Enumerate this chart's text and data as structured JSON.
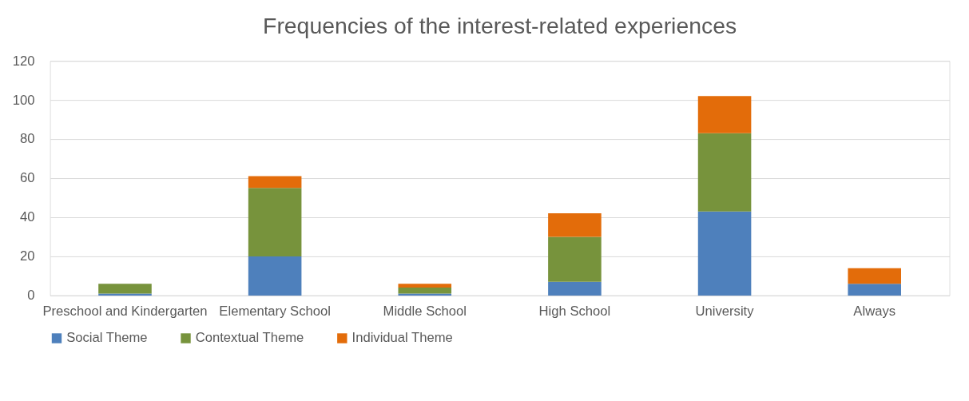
{
  "chart_data": {
    "type": "bar",
    "title": "Frequencies of the interest-related experiences",
    "categories": [
      "Preschool and Kindergarten",
      "Elementary School",
      "Middle School",
      "High School",
      "University",
      "Always"
    ],
    "stacked": true,
    "series": [
      {
        "name": "Social Theme",
        "color": "#4e80bc",
        "values": [
          1,
          20,
          1,
          7,
          43,
          6
        ]
      },
      {
        "name": "Contextual Theme",
        "color": "#77933c",
        "values": [
          5,
          35,
          3,
          23,
          40,
          0
        ]
      },
      {
        "name": "Individual Theme",
        "color": "#e36c0a",
        "values": [
          0,
          6,
          2,
          12,
          19,
          8
        ]
      }
    ],
    "ylim": [
      0,
      120
    ],
    "yticks": [
      0,
      20,
      40,
      60,
      80,
      100,
      120
    ],
    "grid": "y",
    "legend": "bottom"
  }
}
